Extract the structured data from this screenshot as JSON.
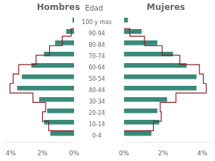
{
  "chart_data": [
    {
      "type": "bar",
      "orientation": "horizontal",
      "title": "Hombres",
      "ylabel": "Edad",
      "categories": [
        "0-4",
        "10-14",
        "20-24",
        "30-34",
        "40-44",
        "50-54",
        "60-64",
        "70-74",
        "80-84",
        "90-94",
        "100 y mas"
      ],
      "series": [
        {
          "type": "bar",
          "color": "#3a8a7a",
          "values": [
            1.5,
            1.9,
            1.7,
            2.2,
            3.6,
            3.3,
            2.7,
            1.9,
            1.2,
            0.5,
            0.1
          ]
        },
        {
          "type": "line",
          "line_style": "step",
          "color": "#8b1a1a",
          "values": [
            1.6,
            2.0,
            1.8,
            2.6,
            4.05,
            3.85,
            3.5,
            2.4,
            1.55,
            0.75,
            0.18
          ]
        }
      ],
      "xlim": [
        4.5,
        0
      ],
      "xticks": [
        {
          "value": 4,
          "label": "4%"
        },
        {
          "value": 2,
          "label": "2%"
        },
        {
          "value": 0,
          "label": "0%"
        }
      ],
      "grid": false
    },
    {
      "type": "bar",
      "orientation": "horizontal",
      "title": "Mujeres",
      "categories": [
        "0-4",
        "10-14",
        "20-24",
        "30-34",
        "40-44",
        "50-54",
        "60-64",
        "70-74",
        "80-84",
        "90-94",
        "100 y mas"
      ],
      "series": [
        {
          "type": "bar",
          "color": "#3a8a7a",
          "values": [
            1.4,
            1.8,
            1.7,
            2.2,
            3.7,
            3.7,
            3.2,
            2.5,
            1.7,
            0.9,
            0.2
          ]
        },
        {
          "type": "line",
          "line_style": "step",
          "color": "#8b1a1a",
          "values": [
            1.5,
            1.9,
            1.85,
            2.65,
            4.2,
            4.05,
            3.85,
            2.85,
            1.95,
            1.05,
            0.3
          ]
        }
      ],
      "xlim": [
        0,
        4.5
      ],
      "xticks": [
        {
          "value": 0,
          "label": "0%"
        },
        {
          "value": 2,
          "label": "2%"
        },
        {
          "value": 4,
          "label": "4%"
        }
      ],
      "grid": false,
      "tick_labels": "x"
    }
  ]
}
